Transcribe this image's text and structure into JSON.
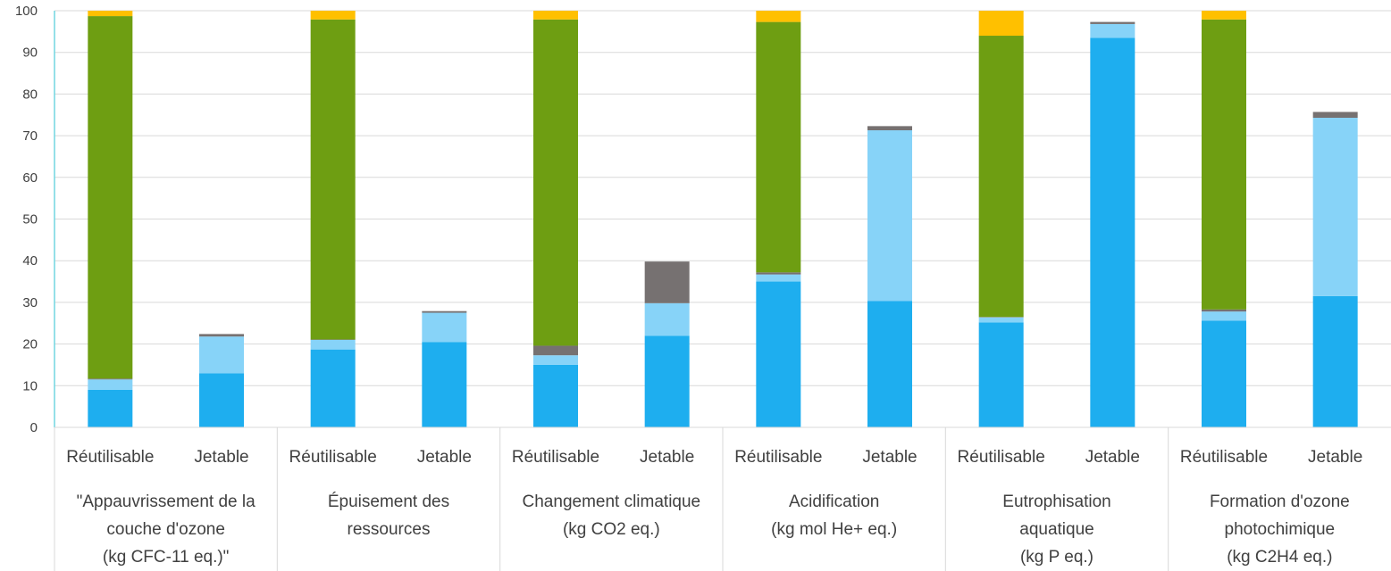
{
  "chart_data": {
    "type": "bar",
    "stacked": true,
    "ylim": [
      0,
      100
    ],
    "yticks": [
      0,
      10,
      20,
      30,
      40,
      50,
      60,
      70,
      80,
      90,
      100
    ],
    "grid": true,
    "legend": "none",
    "groups": [
      {
        "label_lines": [
          "\"Appauvrissement de la",
          "couche d'ozone",
          "(kg CFC-11 eq.)\""
        ]
      },
      {
        "label_lines": [
          "Épuisement des",
          "ressources"
        ]
      },
      {
        "label_lines": [
          "Changement climatique",
          "(kg CO2 eq.)"
        ]
      },
      {
        "label_lines": [
          "Acidification",
          "(kg mol He+ eq.)"
        ]
      },
      {
        "label_lines": [
          "Eutrophisation",
          "aquatique",
          "(kg P eq.)"
        ]
      },
      {
        "label_lines": [
          "Formation d'ozone",
          "photochimique",
          "(kg C2H4 eq.)"
        ]
      }
    ],
    "categories": [
      "Réutilisable",
      "Jetable",
      "Réutilisable",
      "Jetable",
      "Réutilisable",
      "Jetable",
      "Réutilisable",
      "Jetable",
      "Réutilisable",
      "Jetable",
      "Réutilisable",
      "Jetable"
    ],
    "series": [
      {
        "color": "#1EAEEF",
        "values": [
          9.0,
          13.0,
          18.7,
          20.5,
          15.0,
          22.0,
          35.0,
          30.3,
          25.2,
          93.5,
          25.6,
          31.5
        ]
      },
      {
        "color": "#87D3F8",
        "values": [
          2.5,
          8.8,
          2.3,
          7.0,
          2.3,
          7.8,
          1.7,
          41.0,
          1.2,
          3.3,
          2.2,
          42.8
        ]
      },
      {
        "color": "#767171",
        "values": [
          0.2,
          0.6,
          0.1,
          0.4,
          2.3,
          10.0,
          0.5,
          1.0,
          0.1,
          0.5,
          0.5,
          1.4
        ]
      },
      {
        "color": "#6E9E12",
        "values": [
          87.0,
          0.0,
          76.8,
          0.0,
          78.3,
          0.0,
          60.1,
          0.0,
          67.5,
          0.0,
          69.6,
          0.0
        ]
      },
      {
        "color": "#FFC000",
        "values": [
          1.3,
          0.0,
          2.1,
          0.0,
          2.1,
          0.0,
          2.7,
          0.0,
          6.0,
          0.0,
          2.1,
          0.0
        ]
      }
    ]
  }
}
